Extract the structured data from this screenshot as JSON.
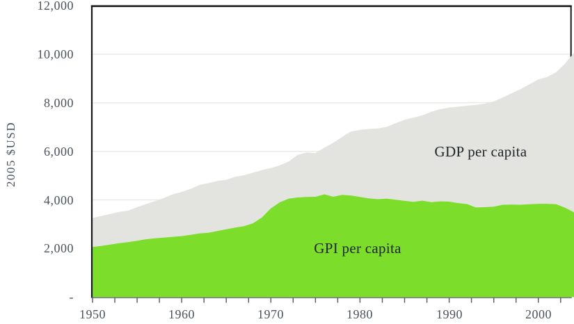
{
  "figure": {
    "kind": "stacked-looking area chart (overlaid areas), no window chrome",
    "background": "#ffffff"
  },
  "colors": {
    "gdp_area": "#e3e4df",
    "gpi_area": "#7cdd2b",
    "grid": "#e9e9e5",
    "border": "#16181c",
    "axis": "#53575d",
    "tick_text": "#4b525d",
    "annotation_text": "#20252c"
  },
  "annotations": {
    "gdp_label": "GDP per capita",
    "gpi_label": "GPI per capita"
  },
  "chart_data": {
    "type": "area",
    "title": "",
    "xlabel": "",
    "ylabel": "2005 $USD",
    "ylim": [
      0,
      12000
    ],
    "grid": "horizontal light gridlines every 2000",
    "legend": "in-plot text labels on each area",
    "x": [
      1950,
      1951,
      1952,
      1953,
      1954,
      1955,
      1956,
      1957,
      1958,
      1959,
      1960,
      1961,
      1962,
      1963,
      1964,
      1965,
      1966,
      1967,
      1968,
      1969,
      1970,
      1971,
      1972,
      1973,
      1974,
      1975,
      1976,
      1977,
      1978,
      1979,
      1980,
      1981,
      1982,
      1983,
      1984,
      1985,
      1986,
      1987,
      1988,
      1989,
      1990,
      1991,
      1992,
      1993,
      1994,
      1995,
      1996,
      1997,
      1998,
      1999,
      2000,
      2001,
      2002,
      2003,
      2004
    ],
    "series": [
      {
        "name": "GDP per capita",
        "color": "#e3e4df",
        "values": [
          3260,
          3340,
          3420,
          3510,
          3560,
          3700,
          3830,
          3950,
          4080,
          4230,
          4330,
          4450,
          4620,
          4690,
          4780,
          4830,
          4950,
          5020,
          5120,
          5230,
          5310,
          5420,
          5580,
          5850,
          5950,
          5930,
          6150,
          6350,
          6600,
          6820,
          6880,
          6920,
          6940,
          7010,
          7160,
          7300,
          7390,
          7480,
          7630,
          7740,
          7800,
          7840,
          7880,
          7910,
          7960,
          8060,
          8210,
          8390,
          8560,
          8760,
          8960,
          9060,
          9260,
          9610,
          10060
        ]
      },
      {
        "name": "GPI per capita",
        "color": "#7cdd2b",
        "values": [
          2060,
          2110,
          2160,
          2220,
          2260,
          2320,
          2380,
          2420,
          2450,
          2480,
          2510,
          2560,
          2620,
          2650,
          2720,
          2790,
          2860,
          2920,
          3040,
          3280,
          3650,
          3900,
          4050,
          4100,
          4120,
          4130,
          4230,
          4130,
          4210,
          4180,
          4120,
          4060,
          4030,
          4050,
          4010,
          3960,
          3920,
          3970,
          3910,
          3940,
          3930,
          3870,
          3830,
          3690,
          3700,
          3720,
          3800,
          3810,
          3800,
          3820,
          3840,
          3840,
          3820,
          3680,
          3490
        ]
      }
    ],
    "y_ticks": [
      {
        "value": 12000,
        "label": "12,000"
      },
      {
        "value": 10000,
        "label": "10,000"
      },
      {
        "value": 8000,
        "label": "8,000"
      },
      {
        "value": 6000,
        "label": "6,000"
      },
      {
        "value": 4000,
        "label": "4,000"
      },
      {
        "value": 2000,
        "label": "2,000"
      },
      {
        "value": 0,
        "label": "-"
      }
    ],
    "x_ticks": [
      {
        "value": 1950,
        "label": "1950"
      },
      {
        "value": 1960,
        "label": "1960"
      },
      {
        "value": 1970,
        "label": "1970"
      },
      {
        "value": 1980,
        "label": "1980"
      },
      {
        "value": 1990,
        "label": "1990"
      },
      {
        "value": 2000,
        "label": "2000"
      }
    ],
    "minor_tick_step_years": 2.5
  }
}
